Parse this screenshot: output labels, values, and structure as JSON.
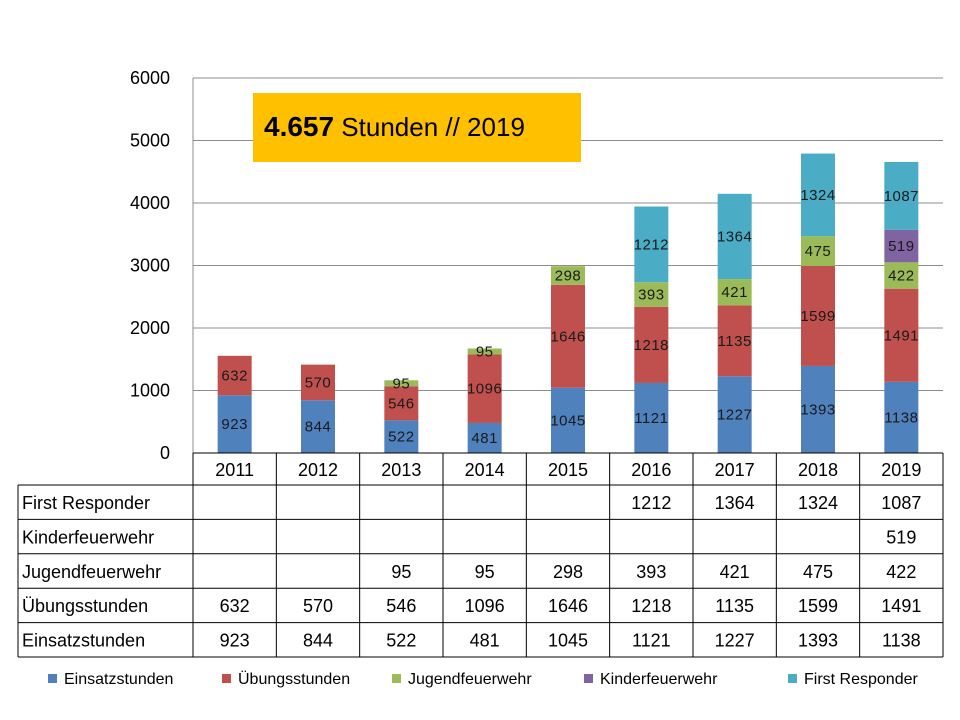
{
  "chart_data": {
    "type": "bar",
    "stacked": true,
    "categories": [
      "2011",
      "2012",
      "2013",
      "2014",
      "2015",
      "2016",
      "2017",
      "2018",
      "2019"
    ],
    "series": [
      {
        "name": "Einsatzstunden",
        "color": "#4F81BD",
        "values": [
          923,
          844,
          522,
          481,
          1045,
          1121,
          1227,
          1393,
          1138
        ]
      },
      {
        "name": "Übungsstunden",
        "color": "#C0504D",
        "values": [
          632,
          570,
          546,
          1096,
          1646,
          1218,
          1135,
          1599,
          1491
        ]
      },
      {
        "name": "Jugendfeuerwehr",
        "color": "#9BBB59",
        "values": [
          null,
          null,
          95,
          95,
          298,
          393,
          421,
          475,
          422
        ]
      },
      {
        "name": "Kinderfeuerwehr",
        "color": "#8064A2",
        "values": [
          null,
          null,
          null,
          null,
          null,
          null,
          null,
          null,
          519
        ]
      },
      {
        "name": "First Responder",
        "color": "#4BACC6",
        "values": [
          null,
          null,
          null,
          null,
          null,
          1212,
          1364,
          1324,
          1087
        ]
      }
    ],
    "ylim": [
      0,
      6000
    ],
    "yticks": [
      "0",
      "1000",
      "2000",
      "3000",
      "4000",
      "5000",
      "6000"
    ],
    "grid": true,
    "legend_position": "bottom",
    "data_table": {
      "rows_top_to_bottom": [
        "First Responder",
        "Kinderfeuerwehr",
        "Jugendfeuerwehr",
        "Übungsstunden",
        "Einsatzstunden"
      ]
    },
    "annotation": {
      "bold": "4.657",
      "normal": " Stunden // 2019",
      "background": "#FFC000"
    }
  }
}
